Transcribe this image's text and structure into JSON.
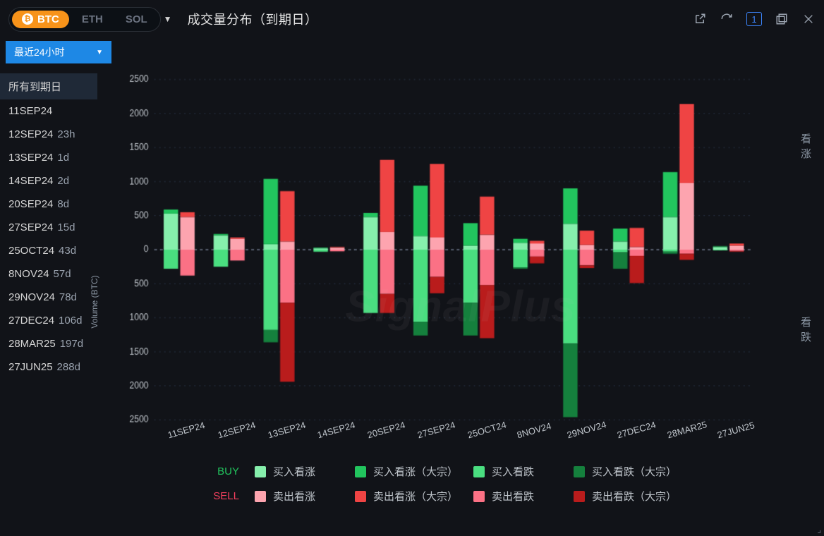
{
  "header": {
    "assets": [
      {
        "label": "BTC",
        "active": true,
        "icon": "₿"
      },
      {
        "label": "ETH",
        "active": false
      },
      {
        "label": "SOL",
        "active": false
      }
    ],
    "title": "成交量分布（到期日）",
    "page_indicator": "1"
  },
  "time_dropdown": {
    "label": "最近24小时"
  },
  "sidebar": {
    "items": [
      {
        "label": "所有到期日",
        "duration": "",
        "active": true
      },
      {
        "label": "11SEP24",
        "duration": ""
      },
      {
        "label": "12SEP24",
        "duration": "23h"
      },
      {
        "label": "13SEP24",
        "duration": "1d"
      },
      {
        "label": "14SEP24",
        "duration": "2d"
      },
      {
        "label": "20SEP24",
        "duration": "8d"
      },
      {
        "label": "27SEP24",
        "duration": "15d"
      },
      {
        "label": "25OCT24",
        "duration": "43d"
      },
      {
        "label": "8NOV24",
        "duration": "57d"
      },
      {
        "label": "29NOV24",
        "duration": "78d"
      },
      {
        "label": "27DEC24",
        "duration": "106d"
      },
      {
        "label": "28MAR25",
        "duration": "197d"
      },
      {
        "label": "27JUN25",
        "duration": "288d"
      }
    ]
  },
  "chart": {
    "type": "stacked_diverging_bar_paired",
    "ylabel": "Volume (BTC)",
    "ylim": [
      -2500,
      2500
    ],
    "ytick_step": 500,
    "yticks": [
      2500,
      2000,
      1500,
      1000,
      500,
      0,
      500,
      1000,
      1500,
      2000,
      2500
    ],
    "right_labels": {
      "top": "看涨",
      "bottom": "看跌"
    },
    "grid_color": "#263041",
    "zero_line_color": "#6b7688",
    "background_color": "#111318",
    "watermark": "SignalPlus",
    "colors": {
      "buy_call": "#86efac",
      "buy_call_block": "#22c55e",
      "buy_put": "#4ade80",
      "buy_put_block": "#15803d",
      "sell_call": "#fda4af",
      "sell_call_block": "#ef4444",
      "sell_put": "#fb7185",
      "sell_put_block": "#b91c1c"
    },
    "categories": [
      "11SEP24",
      "12SEP24",
      "13SEP24",
      "14SEP24",
      "20SEP24",
      "27SEP24",
      "25OCT24",
      "8NOV24",
      "29NOV24",
      "27DEC24",
      "28MAR25",
      "27JUN25"
    ],
    "data": [
      {
        "buy": {
          "call": 530,
          "call_block": 60,
          "put": 280,
          "put_block": 0
        },
        "sell": {
          "call": 480,
          "call_block": 70,
          "put": 380,
          "put_block": 0
        }
      },
      {
        "buy": {
          "call": 210,
          "call_block": 20,
          "put": 250,
          "put_block": 0
        },
        "sell": {
          "call": 160,
          "call_block": 20,
          "put": 160,
          "put_block": 0
        }
      },
      {
        "buy": {
          "call": 80,
          "call_block": 960,
          "put": 1180,
          "put_block": 180
        },
        "sell": {
          "call": 120,
          "call_block": 740,
          "put": 780,
          "put_block": 1160
        }
      },
      {
        "buy": {
          "call": 20,
          "call_block": 10,
          "put": 30,
          "put_block": 0
        },
        "sell": {
          "call": 30,
          "call_block": 10,
          "put": 25,
          "put_block": 0
        }
      },
      {
        "buy": {
          "call": 480,
          "call_block": 60,
          "put": 930,
          "put_block": 0
        },
        "sell": {
          "call": 260,
          "call_block": 1060,
          "put": 650,
          "put_block": 280
        }
      },
      {
        "buy": {
          "call": 200,
          "call_block": 740,
          "put": 1060,
          "put_block": 200
        },
        "sell": {
          "call": 180,
          "call_block": 1080,
          "put": 400,
          "put_block": 240
        }
      },
      {
        "buy": {
          "call": 60,
          "call_block": 330,
          "put": 780,
          "put_block": 480
        },
        "sell": {
          "call": 220,
          "call_block": 560,
          "put": 520,
          "put_block": 780
        }
      },
      {
        "buy": {
          "call": 100,
          "call_block": 60,
          "put": 260,
          "put_block": 20
        },
        "sell": {
          "call": 90,
          "call_block": 40,
          "put": 100,
          "put_block": 100
        }
      },
      {
        "buy": {
          "call": 380,
          "call_block": 520,
          "put": 1380,
          "put_block": 1080
        },
        "sell": {
          "call": 70,
          "call_block": 210,
          "put": 230,
          "put_block": 40
        }
      },
      {
        "buy": {
          "call": 120,
          "call_block": 190,
          "put": 40,
          "put_block": 240
        },
        "sell": {
          "call": 40,
          "call_block": 280,
          "put": 90,
          "put_block": 400
        }
      },
      {
        "buy": {
          "call": 480,
          "call_block": 660,
          "put": 30,
          "put_block": 30
        },
        "sell": {
          "call": 980,
          "call_block": 1160,
          "put": 60,
          "put_block": 90
        }
      },
      {
        "buy": {
          "call": 40,
          "call_block": 10,
          "put": 10,
          "put_block": 0
        },
        "sell": {
          "call": 60,
          "call_block": 30,
          "put": 20,
          "put_block": 10
        }
      }
    ]
  },
  "legend": {
    "buy_label": "BUY",
    "sell_label": "SELL",
    "buy_items": [
      {
        "key": "buy_call",
        "label": "买入看涨"
      },
      {
        "key": "buy_call_block",
        "label": "买入看涨（大宗）"
      },
      {
        "key": "buy_put",
        "label": "买入看跌"
      },
      {
        "key": "buy_put_block",
        "label": "买入看跌（大宗）"
      }
    ],
    "sell_items": [
      {
        "key": "sell_call",
        "label": "卖出看涨"
      },
      {
        "key": "sell_call_block",
        "label": "卖出看涨（大宗）"
      },
      {
        "key": "sell_put",
        "label": "卖出看跌"
      },
      {
        "key": "sell_put_block",
        "label": "卖出看跌（大宗）"
      }
    ]
  }
}
